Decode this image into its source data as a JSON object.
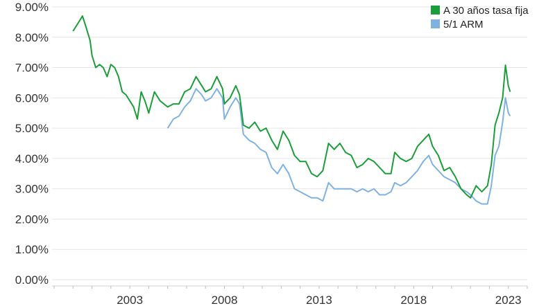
{
  "chart_data": {
    "type": "line",
    "title": "",
    "xlabel": "",
    "ylabel": "",
    "ylim": [
      0,
      9
    ],
    "xlim": [
      1999,
      2024
    ],
    "y_ticks": [
      0,
      1,
      2,
      3,
      4,
      5,
      6,
      7,
      8,
      9
    ],
    "y_tick_labels": [
      "0.00%",
      "1.00%",
      "2.00%",
      "3.00%",
      "4.00%",
      "5.00%",
      "6.00%",
      "7.00%",
      "8.00%",
      "9.00%"
    ],
    "x_ticks": [
      2003,
      2008,
      2013,
      2018,
      2023
    ],
    "x_tick_labels": [
      "2003",
      "2008",
      "2013",
      "2018",
      "2023"
    ],
    "grid": "horizontal",
    "legend_position": "top-right",
    "series": [
      {
        "name": "A 30 años tasa fija",
        "color": "#1a9e3a",
        "points": [
          [
            2000.0,
            8.2
          ],
          [
            2000.3,
            8.5
          ],
          [
            2000.5,
            8.7
          ],
          [
            2000.7,
            8.3
          ],
          [
            2000.9,
            7.9
          ],
          [
            2001.0,
            7.4
          ],
          [
            2001.2,
            7.0
          ],
          [
            2001.4,
            7.1
          ],
          [
            2001.6,
            7.0
          ],
          [
            2001.8,
            6.7
          ],
          [
            2002.0,
            7.1
          ],
          [
            2002.2,
            7.0
          ],
          [
            2002.4,
            6.7
          ],
          [
            2002.6,
            6.2
          ],
          [
            2002.8,
            6.1
          ],
          [
            2003.0,
            5.9
          ],
          [
            2003.2,
            5.7
          ],
          [
            2003.4,
            5.3
          ],
          [
            2003.6,
            6.2
          ],
          [
            2003.8,
            5.9
          ],
          [
            2004.0,
            5.5
          ],
          [
            2004.3,
            6.2
          ],
          [
            2004.6,
            5.9
          ],
          [
            2005.0,
            5.7
          ],
          [
            2005.3,
            5.8
          ],
          [
            2005.6,
            5.8
          ],
          [
            2005.9,
            6.2
          ],
          [
            2006.2,
            6.3
          ],
          [
            2006.5,
            6.7
          ],
          [
            2006.8,
            6.4
          ],
          [
            2007.0,
            6.2
          ],
          [
            2007.3,
            6.3
          ],
          [
            2007.6,
            6.7
          ],
          [
            2007.9,
            6.3
          ],
          [
            2008.0,
            5.8
          ],
          [
            2008.3,
            6.0
          ],
          [
            2008.6,
            6.4
          ],
          [
            2008.8,
            6.1
          ],
          [
            2009.0,
            5.1
          ],
          [
            2009.3,
            5.0
          ],
          [
            2009.6,
            5.2
          ],
          [
            2009.9,
            4.9
          ],
          [
            2010.2,
            5.0
          ],
          [
            2010.5,
            4.6
          ],
          [
            2010.8,
            4.3
          ],
          [
            2011.1,
            4.9
          ],
          [
            2011.4,
            4.6
          ],
          [
            2011.7,
            4.1
          ],
          [
            2012.0,
            3.9
          ],
          [
            2012.3,
            3.9
          ],
          [
            2012.6,
            3.5
          ],
          [
            2012.9,
            3.4
          ],
          [
            2013.2,
            3.6
          ],
          [
            2013.5,
            4.5
          ],
          [
            2013.8,
            4.3
          ],
          [
            2014.1,
            4.5
          ],
          [
            2014.4,
            4.2
          ],
          [
            2014.7,
            4.1
          ],
          [
            2015.0,
            3.7
          ],
          [
            2015.3,
            3.8
          ],
          [
            2015.6,
            4.0
          ],
          [
            2015.9,
            3.9
          ],
          [
            2016.2,
            3.7
          ],
          [
            2016.5,
            3.5
          ],
          [
            2016.8,
            3.5
          ],
          [
            2017.0,
            4.2
          ],
          [
            2017.3,
            4.0
          ],
          [
            2017.6,
            3.9
          ],
          [
            2017.9,
            4.0
          ],
          [
            2018.2,
            4.4
          ],
          [
            2018.5,
            4.6
          ],
          [
            2018.8,
            4.8
          ],
          [
            2019.0,
            4.4
          ],
          [
            2019.3,
            4.1
          ],
          [
            2019.6,
            3.6
          ],
          [
            2019.9,
            3.7
          ],
          [
            2020.2,
            3.4
          ],
          [
            2020.5,
            3.0
          ],
          [
            2020.8,
            2.8
          ],
          [
            2021.0,
            2.7
          ],
          [
            2021.3,
            3.1
          ],
          [
            2021.6,
            2.9
          ],
          [
            2021.9,
            3.1
          ],
          [
            2022.1,
            3.8
          ],
          [
            2022.3,
            5.1
          ],
          [
            2022.5,
            5.5
          ],
          [
            2022.7,
            6.0
          ],
          [
            2022.85,
            7.08
          ],
          [
            2023.0,
            6.4
          ],
          [
            2023.1,
            6.2
          ]
        ]
      },
      {
        "name": "5/1 ARM",
        "color": "#7fb2e2",
        "points": [
          [
            2005.0,
            5.0
          ],
          [
            2005.3,
            5.3
          ],
          [
            2005.6,
            5.4
          ],
          [
            2005.9,
            5.7
          ],
          [
            2006.2,
            5.9
          ],
          [
            2006.5,
            6.3
          ],
          [
            2006.8,
            6.1
          ],
          [
            2007.0,
            5.9
          ],
          [
            2007.3,
            6.0
          ],
          [
            2007.6,
            6.3
          ],
          [
            2007.9,
            6.0
          ],
          [
            2008.0,
            5.3
          ],
          [
            2008.3,
            5.7
          ],
          [
            2008.6,
            6.0
          ],
          [
            2008.8,
            5.8
          ],
          [
            2009.0,
            4.8
          ],
          [
            2009.3,
            4.6
          ],
          [
            2009.6,
            4.5
          ],
          [
            2009.9,
            4.3
          ],
          [
            2010.2,
            4.2
          ],
          [
            2010.5,
            3.7
          ],
          [
            2010.8,
            3.5
          ],
          [
            2011.1,
            3.8
          ],
          [
            2011.4,
            3.5
          ],
          [
            2011.7,
            3.0
          ],
          [
            2012.0,
            2.9
          ],
          [
            2012.3,
            2.8
          ],
          [
            2012.6,
            2.7
          ],
          [
            2012.9,
            2.7
          ],
          [
            2013.2,
            2.6
          ],
          [
            2013.5,
            3.2
          ],
          [
            2013.8,
            3.0
          ],
          [
            2014.1,
            3.0
          ],
          [
            2014.4,
            3.0
          ],
          [
            2014.7,
            3.0
          ],
          [
            2015.0,
            2.9
          ],
          [
            2015.3,
            3.0
          ],
          [
            2015.6,
            2.9
          ],
          [
            2015.9,
            3.0
          ],
          [
            2016.2,
            2.8
          ],
          [
            2016.5,
            2.8
          ],
          [
            2016.8,
            2.9
          ],
          [
            2017.0,
            3.2
          ],
          [
            2017.3,
            3.1
          ],
          [
            2017.6,
            3.2
          ],
          [
            2017.9,
            3.4
          ],
          [
            2018.2,
            3.6
          ],
          [
            2018.5,
            3.9
          ],
          [
            2018.8,
            4.1
          ],
          [
            2019.0,
            3.8
          ],
          [
            2019.3,
            3.6
          ],
          [
            2019.6,
            3.4
          ],
          [
            2019.9,
            3.3
          ],
          [
            2020.2,
            3.2
          ],
          [
            2020.5,
            3.0
          ],
          [
            2020.8,
            2.9
          ],
          [
            2021.0,
            2.8
          ],
          [
            2021.3,
            2.6
          ],
          [
            2021.6,
            2.5
          ],
          [
            2021.9,
            2.5
          ],
          [
            2022.1,
            3.1
          ],
          [
            2022.3,
            4.1
          ],
          [
            2022.5,
            4.4
          ],
          [
            2022.7,
            5.2
          ],
          [
            2022.85,
            6.0
          ],
          [
            2023.0,
            5.5
          ],
          [
            2023.1,
            5.4
          ]
        ]
      }
    ]
  }
}
